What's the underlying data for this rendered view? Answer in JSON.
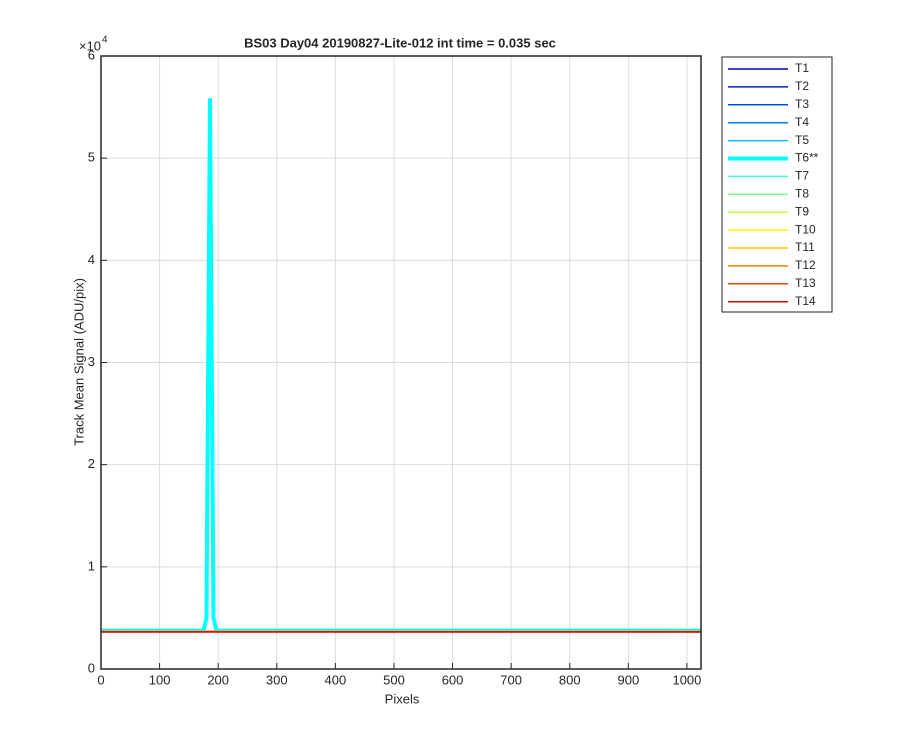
{
  "chart_data": {
    "type": "line",
    "title": "BS03 Day04 20190827-Lite-012 int time = 0.035 sec",
    "x_label": "Pixels",
    "y_label": "Track Mean Signal (ADU/pix)",
    "y_exponent": {
      "base": "×10",
      "power": "4"
    },
    "x": [
      0,
      175,
      180,
      183,
      186,
      189,
      192,
      197,
      1024
    ],
    "xlim": [
      0,
      1024
    ],
    "xticks": [
      0,
      100,
      200,
      300,
      400,
      500,
      600,
      700,
      800,
      900,
      1000
    ],
    "ylim": [
      0,
      60000
    ],
    "yticks": [
      {
        "value": 0,
        "label": "0"
      },
      {
        "value": 10000,
        "label": "1"
      },
      {
        "value": 20000,
        "label": "2"
      },
      {
        "value": 30000,
        "label": "3"
      },
      {
        "value": 40000,
        "label": "4"
      },
      {
        "value": 50000,
        "label": "5"
      },
      {
        "value": 60000,
        "label": "6"
      }
    ],
    "grid": true,
    "legend": "outside-right",
    "series": [
      {
        "name": "T1",
        "color": "#0000b0",
        "width": 1.5,
        "values": [
          3700,
          3700,
          3700,
          3700,
          3700,
          3700,
          3700,
          3700,
          3700
        ]
      },
      {
        "name": "T2",
        "color": "#0020d0",
        "width": 1.5,
        "values": [
          3700,
          3700,
          3700,
          3700,
          3700,
          3700,
          3700,
          3700,
          3700
        ]
      },
      {
        "name": "T3",
        "color": "#0050e0",
        "width": 1.5,
        "values": [
          3700,
          3700,
          3700,
          3700,
          3700,
          3700,
          3700,
          3700,
          3700
        ]
      },
      {
        "name": "T4",
        "color": "#0080f0",
        "width": 1.5,
        "values": [
          3700,
          3700,
          3700,
          3700,
          3700,
          3700,
          3700,
          3700,
          3700
        ]
      },
      {
        "name": "T5",
        "color": "#00c0ff",
        "width": 1.5,
        "values": [
          3720,
          3720,
          3720,
          3720,
          3720,
          3720,
          3720,
          3720,
          3720
        ]
      },
      {
        "name": "T6**",
        "color": "#00ffff",
        "width": 4,
        "values": [
          3750,
          3760,
          5000,
          30000,
          55700,
          30000,
          5000,
          3760,
          3750
        ]
      },
      {
        "name": "T7",
        "color": "#40ffd0",
        "width": 1.5,
        "values": [
          3700,
          3700,
          3700,
          3700,
          3700,
          3700,
          3700,
          3700,
          3700
        ]
      },
      {
        "name": "T8",
        "color": "#80ff90",
        "width": 1.5,
        "values": [
          3700,
          3700,
          3700,
          3700,
          3700,
          3700,
          3700,
          3700,
          3700
        ]
      },
      {
        "name": "T9",
        "color": "#c0ff40",
        "width": 1.5,
        "values": [
          3700,
          3700,
          3700,
          3700,
          3700,
          3700,
          3700,
          3700,
          3700
        ]
      },
      {
        "name": "T10",
        "color": "#ffff00",
        "width": 1.5,
        "values": [
          3700,
          3700,
          3700,
          3700,
          3700,
          3700,
          3700,
          3700,
          3700
        ]
      },
      {
        "name": "T11",
        "color": "#ffc000",
        "width": 1.5,
        "values": [
          3680,
          3680,
          3680,
          3680,
          3680,
          3680,
          3680,
          3680,
          3680
        ]
      },
      {
        "name": "T12",
        "color": "#ff8000",
        "width": 1.5,
        "values": [
          3660,
          3660,
          3660,
          3660,
          3660,
          3660,
          3660,
          3660,
          3660
        ]
      },
      {
        "name": "T13",
        "color": "#ff4000",
        "width": 1.5,
        "values": [
          3640,
          3640,
          3640,
          3640,
          3640,
          3640,
          3640,
          3640,
          3640
        ]
      },
      {
        "name": "T14",
        "color": "#e00000",
        "width": 1.5,
        "values": [
          3620,
          3620,
          3620,
          3620,
          3620,
          3620,
          3620,
          3620,
          3620
        ]
      }
    ]
  }
}
